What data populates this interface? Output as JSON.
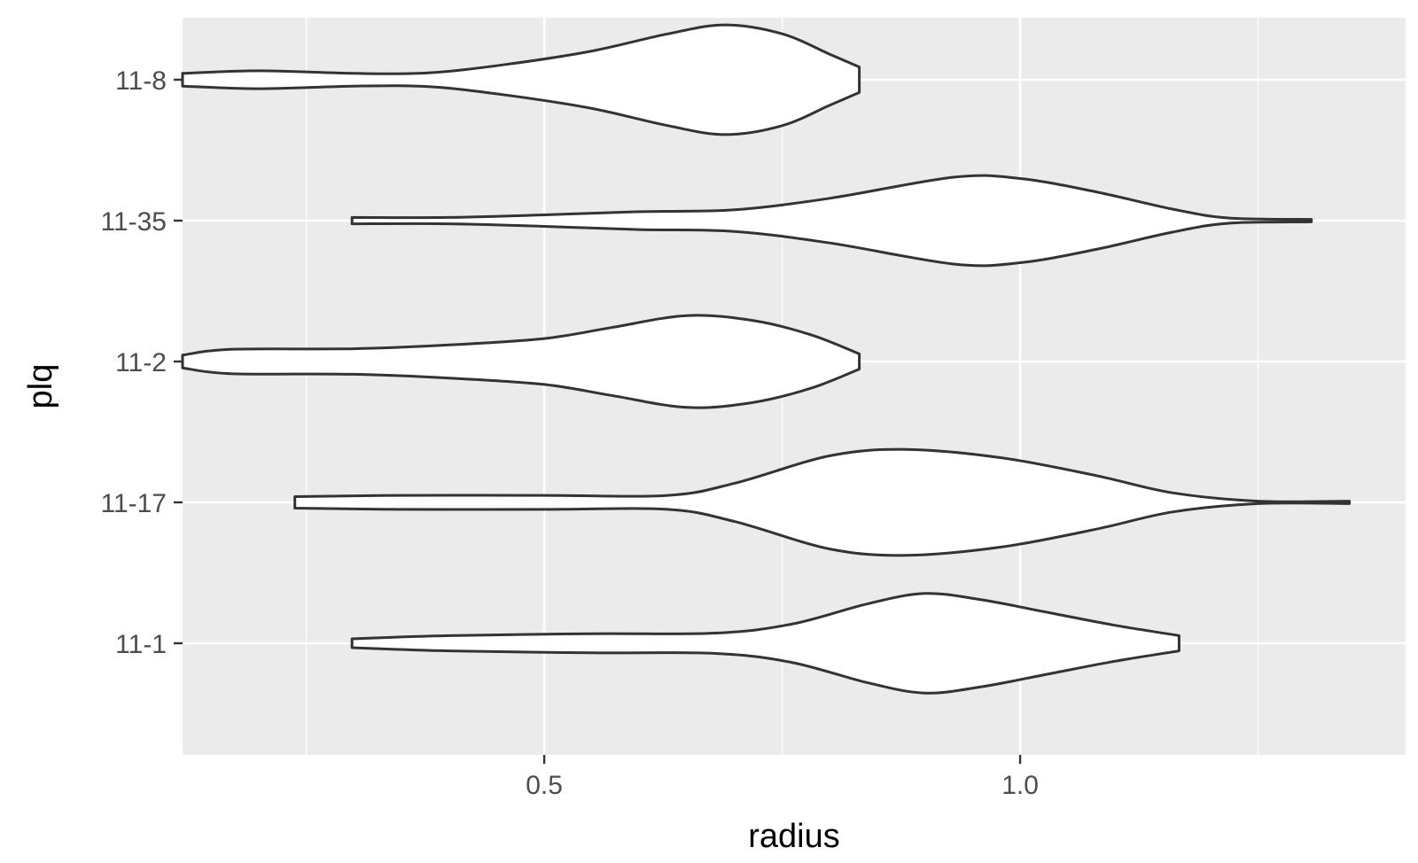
{
  "chart_data": {
    "type": "violin",
    "orientation": "horizontal",
    "title": "",
    "xlabel": "radius",
    "ylabel": "plq",
    "xlim": [
      0.12,
      1.405
    ],
    "x_ticks": [
      0.5,
      1.0
    ],
    "x_tick_labels": [
      "0.5",
      "1.0"
    ],
    "x_minor_ticks": [
      0.25,
      0.75,
      1.25
    ],
    "grid": true,
    "background_color": "#ebebeb",
    "outline_color": "#333333",
    "fill_color": "#ffffff",
    "categories": [
      "11-1",
      "11-17",
      "11-2",
      "11-35",
      "11-8"
    ],
    "series": [
      {
        "category": "11-1",
        "min": 0.298,
        "max": 1.167,
        "density": [
          [
            0.298,
            0.07
          ],
          [
            0.4,
            0.12
          ],
          [
            0.55,
            0.15
          ],
          [
            0.68,
            0.16
          ],
          [
            0.76,
            0.3
          ],
          [
            0.84,
            0.62
          ],
          [
            0.9,
            0.78
          ],
          [
            0.96,
            0.68
          ],
          [
            1.03,
            0.48
          ],
          [
            1.1,
            0.28
          ],
          [
            1.167,
            0.12
          ]
        ]
      },
      {
        "category": "11-17",
        "min": 0.238,
        "max": 1.346,
        "density": [
          [
            0.238,
            0.09
          ],
          [
            0.35,
            0.11
          ],
          [
            0.5,
            0.11
          ],
          [
            0.63,
            0.11
          ],
          [
            0.7,
            0.3
          ],
          [
            0.8,
            0.73
          ],
          [
            0.88,
            0.83
          ],
          [
            0.98,
            0.7
          ],
          [
            1.08,
            0.42
          ],
          [
            1.16,
            0.15
          ],
          [
            1.25,
            0.02
          ],
          [
            1.346,
            0.02
          ]
        ]
      },
      {
        "category": "11-2",
        "min": 0.12,
        "max": 0.831,
        "density": [
          [
            0.12,
            0.1
          ],
          [
            0.17,
            0.19
          ],
          [
            0.3,
            0.2
          ],
          [
            0.4,
            0.26
          ],
          [
            0.5,
            0.36
          ],
          [
            0.57,
            0.53
          ],
          [
            0.65,
            0.72
          ],
          [
            0.72,
            0.64
          ],
          [
            0.78,
            0.42
          ],
          [
            0.831,
            0.12
          ]
        ]
      },
      {
        "category": "11-35",
        "min": 0.298,
        "max": 1.306,
        "density": [
          [
            0.298,
            0.05
          ],
          [
            0.4,
            0.05
          ],
          [
            0.5,
            0.09
          ],
          [
            0.6,
            0.14
          ],
          [
            0.7,
            0.17
          ],
          [
            0.8,
            0.35
          ],
          [
            0.93,
            0.68
          ],
          [
            1.0,
            0.66
          ],
          [
            1.08,
            0.45
          ],
          [
            1.16,
            0.18
          ],
          [
            1.22,
            0.04
          ],
          [
            1.306,
            0.02
          ]
        ]
      },
      {
        "category": "11-8",
        "min": 0.12,
        "max": 0.831,
        "density": [
          [
            0.12,
            0.1
          ],
          [
            0.2,
            0.14
          ],
          [
            0.3,
            0.1
          ],
          [
            0.38,
            0.11
          ],
          [
            0.46,
            0.24
          ],
          [
            0.55,
            0.45
          ],
          [
            0.63,
            0.72
          ],
          [
            0.69,
            0.86
          ],
          [
            0.75,
            0.72
          ],
          [
            0.8,
            0.4
          ],
          [
            0.831,
            0.2
          ]
        ]
      }
    ]
  }
}
